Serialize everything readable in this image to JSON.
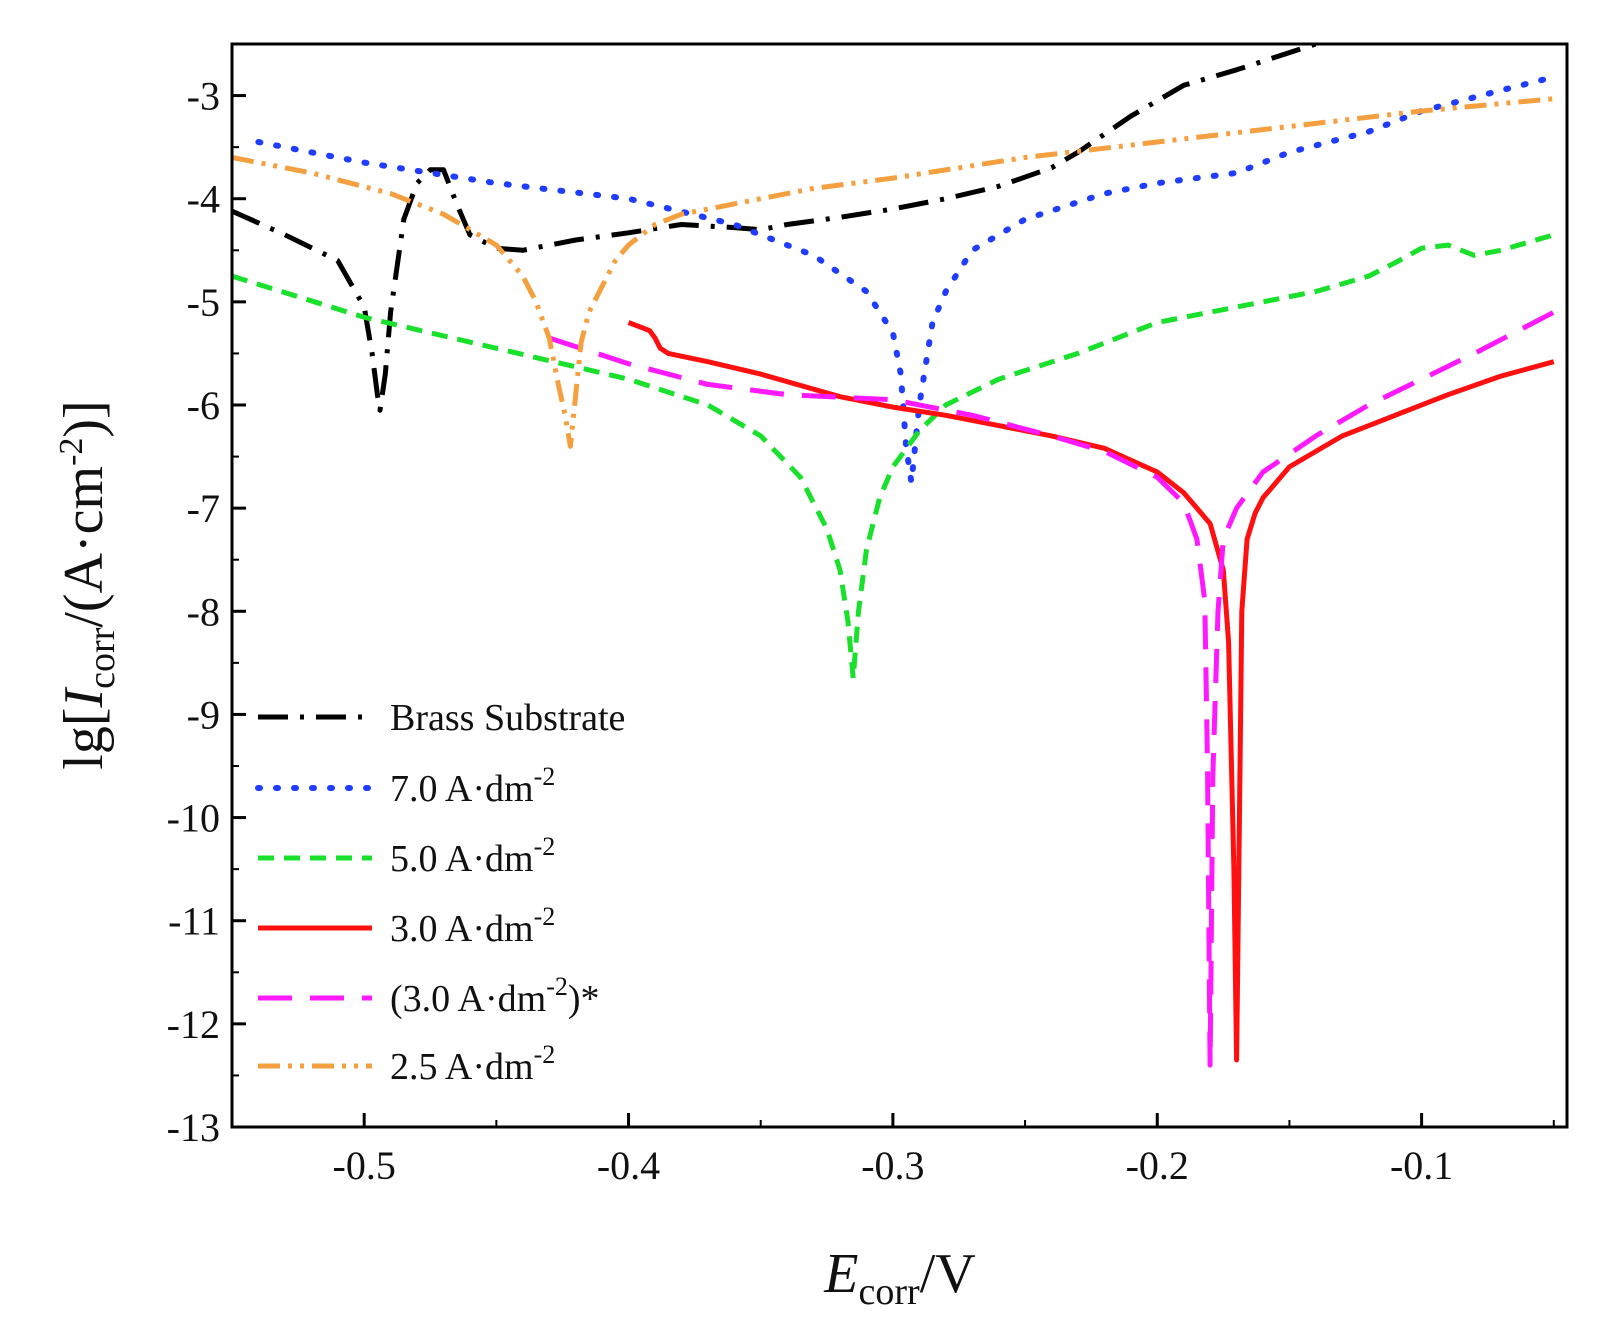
{
  "chart_data": {
    "type": "line",
    "xlabel_main": "E",
    "xlabel_sub": "corr",
    "xlabel_rest": "/V",
    "ylabel_pre": "lg[",
    "ylabel_main": "I",
    "ylabel_sub": "corr",
    "ylabel_rest": "/(A·cm",
    "ylabel_sup": "-2",
    "ylabel_end": ")]",
    "xlim": [
      -0.55,
      -0.045
    ],
    "ylim": [
      -13,
      -2.5
    ],
    "xticks": [
      -0.5,
      -0.4,
      -0.3,
      -0.2,
      -0.1
    ],
    "xtick_labels": [
      "-0.5",
      "-0.4",
      "-0.3",
      "-0.2",
      "-0.1"
    ],
    "yticks": [
      -3,
      -4,
      -5,
      -6,
      -7,
      -8,
      -9,
      -10,
      -11,
      -12,
      -13
    ],
    "ytick_labels": [
      "-3",
      "-4",
      "-5",
      "-6",
      "-7",
      "-8",
      "-9",
      "-10",
      "-11",
      "-12",
      "-13"
    ],
    "legend_position": "lower-left",
    "series": [
      {
        "name": "Brass Substrate",
        "label_main": "Brass Substrate",
        "label_sup": "",
        "label_end": "",
        "color": "#000000",
        "dash": "dashdot",
        "x": [
          -0.55,
          -0.53,
          -0.51,
          -0.5,
          -0.497,
          -0.495,
          -0.494,
          -0.492,
          -0.49,
          -0.485,
          -0.48,
          -0.475,
          -0.47,
          -0.465,
          -0.46,
          -0.45,
          -0.44,
          -0.42,
          -0.4,
          -0.38,
          -0.36,
          -0.35,
          -0.34,
          -0.32,
          -0.3,
          -0.28,
          -0.26,
          -0.24,
          -0.23,
          -0.21,
          -0.19,
          -0.17,
          -0.14
        ],
        "y": [
          -4.12,
          -4.35,
          -4.6,
          -5.05,
          -5.5,
          -5.9,
          -6.05,
          -5.7,
          -5.1,
          -4.2,
          -3.85,
          -3.72,
          -3.72,
          -4.05,
          -4.35,
          -4.48,
          -4.5,
          -4.4,
          -4.33,
          -4.25,
          -4.28,
          -4.3,
          -4.25,
          -4.18,
          -4.1,
          -4.0,
          -3.88,
          -3.7,
          -3.55,
          -3.2,
          -2.9,
          -2.75,
          -2.5
        ]
      },
      {
        "name": "7.0 A·dm-2",
        "label_main": "7.0 A·dm",
        "label_sup": "-2",
        "label_end": "",
        "color": "#1f3cff",
        "dash": "dotted",
        "x": [
          -0.54,
          -0.5,
          -0.45,
          -0.4,
          -0.36,
          -0.33,
          -0.31,
          -0.3,
          -0.297,
          -0.295,
          -0.293,
          -0.29,
          -0.285,
          -0.28,
          -0.27,
          -0.25,
          -0.22,
          -0.2,
          -0.17,
          -0.15,
          -0.12,
          -0.1,
          -0.07,
          -0.05
        ],
        "y": [
          -3.45,
          -3.65,
          -3.85,
          -4.0,
          -4.25,
          -4.55,
          -4.9,
          -5.3,
          -5.7,
          -6.4,
          -6.75,
          -6.0,
          -5.2,
          -4.9,
          -4.5,
          -4.2,
          -3.95,
          -3.85,
          -3.75,
          -3.55,
          -3.35,
          -3.15,
          -2.95,
          -2.82
        ]
      },
      {
        "name": "5.0 A·dm-2",
        "label_main": "5.0 A·dm",
        "label_sup": "-2",
        "label_end": "",
        "color": "#19e02b",
        "dash": "dashed",
        "x": [
          -0.55,
          -0.5,
          -0.45,
          -0.4,
          -0.37,
          -0.35,
          -0.335,
          -0.325,
          -0.32,
          -0.317,
          -0.315,
          -0.313,
          -0.31,
          -0.305,
          -0.3,
          -0.29,
          -0.28,
          -0.26,
          -0.23,
          -0.2,
          -0.17,
          -0.14,
          -0.12,
          -0.11,
          -0.1,
          -0.09,
          -0.085,
          -0.08,
          -0.07,
          -0.05
        ],
        "y": [
          -4.75,
          -5.15,
          -5.45,
          -5.75,
          -6.0,
          -6.3,
          -6.7,
          -7.2,
          -7.6,
          -8.1,
          -8.65,
          -8.0,
          -7.4,
          -6.9,
          -6.6,
          -6.25,
          -6.0,
          -5.75,
          -5.5,
          -5.2,
          -5.05,
          -4.9,
          -4.75,
          -4.62,
          -4.48,
          -4.45,
          -4.5,
          -4.55,
          -4.5,
          -4.35
        ]
      },
      {
        "name": "3.0 A·dm-2",
        "label_main": "3.0 A·dm",
        "label_sup": "-2",
        "label_end": "",
        "color": "#ff1010",
        "dash": "solid",
        "x": [
          -0.4,
          -0.395,
          -0.392,
          -0.39,
          -0.388,
          -0.385,
          -0.37,
          -0.35,
          -0.32,
          -0.3,
          -0.28,
          -0.26,
          -0.24,
          -0.22,
          -0.2,
          -0.19,
          -0.18,
          -0.175,
          -0.173,
          -0.171,
          -0.17,
          -0.169,
          -0.168,
          -0.166,
          -0.163,
          -0.16,
          -0.15,
          -0.13,
          -0.11,
          -0.09,
          -0.07,
          -0.05
        ],
        "y": [
          -5.2,
          -5.25,
          -5.28,
          -5.35,
          -5.45,
          -5.5,
          -5.58,
          -5.7,
          -5.92,
          -6.02,
          -6.1,
          -6.2,
          -6.3,
          -6.42,
          -6.65,
          -6.85,
          -7.15,
          -7.6,
          -8.3,
          -10.5,
          -12.35,
          -10.2,
          -8.0,
          -7.3,
          -7.05,
          -6.9,
          -6.6,
          -6.3,
          -6.1,
          -5.9,
          -5.72,
          -5.58
        ]
      },
      {
        "name": "(3.0 A·dm-2)*",
        "label_main": "(3.0 A·dm",
        "label_sup": "-2",
        "label_end": ")*",
        "color": "#ff19ff",
        "dash": "longdash",
        "x": [
          -0.43,
          -0.4,
          -0.37,
          -0.34,
          -0.3,
          -0.27,
          -0.24,
          -0.22,
          -0.2,
          -0.19,
          -0.185,
          -0.182,
          -0.181,
          -0.18,
          -0.179,
          -0.177,
          -0.175,
          -0.17,
          -0.16,
          -0.14,
          -0.12,
          -0.1,
          -0.08,
          -0.05
        ],
        "y": [
          -5.35,
          -5.6,
          -5.8,
          -5.9,
          -5.95,
          -6.1,
          -6.3,
          -6.45,
          -6.7,
          -6.95,
          -7.3,
          -7.9,
          -9.5,
          -12.4,
          -9.6,
          -8.0,
          -7.3,
          -7.0,
          -6.65,
          -6.3,
          -6.0,
          -5.75,
          -5.5,
          -5.1
        ]
      },
      {
        "name": "2.5 A·dm-2",
        "label_main": "2.5 A·dm",
        "label_sup": "-2",
        "label_end": "",
        "color": "#f5a040",
        "dash": "dashdotdot",
        "x": [
          -0.55,
          -0.52,
          -0.49,
          -0.47,
          -0.45,
          -0.44,
          -0.435,
          -0.43,
          -0.427,
          -0.424,
          -0.422,
          -0.42,
          -0.418,
          -0.415,
          -0.41,
          -0.405,
          -0.4,
          -0.39,
          -0.38,
          -0.36,
          -0.33,
          -0.3,
          -0.25,
          -0.2,
          -0.15,
          -0.1,
          -0.05
        ],
        "y": [
          -3.6,
          -3.75,
          -3.95,
          -4.15,
          -4.45,
          -4.75,
          -5.0,
          -5.35,
          -5.75,
          -6.1,
          -6.4,
          -5.9,
          -5.4,
          -5.1,
          -4.85,
          -4.6,
          -4.45,
          -4.25,
          -4.15,
          -4.05,
          -3.9,
          -3.8,
          -3.6,
          -3.45,
          -3.3,
          -3.15,
          -3.03
        ]
      }
    ]
  }
}
